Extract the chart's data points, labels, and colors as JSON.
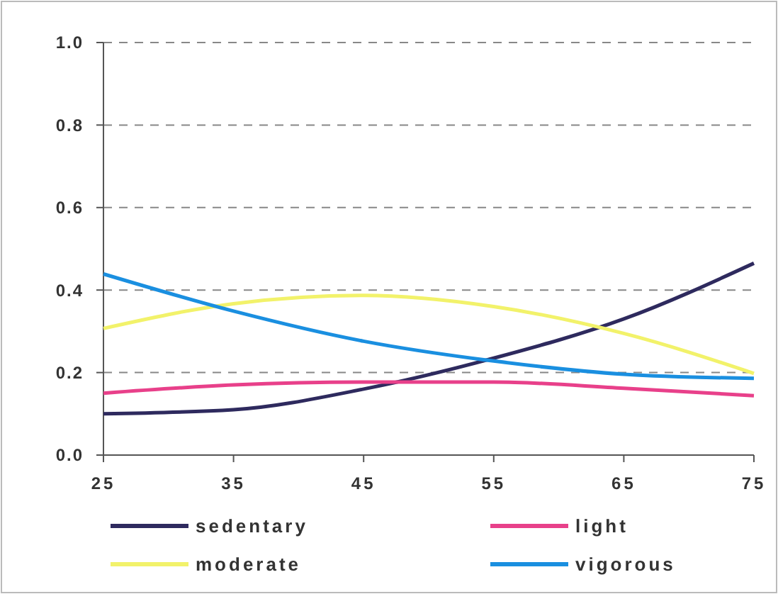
{
  "chart_data": {
    "type": "line",
    "x": [
      25,
      35,
      45,
      55,
      65,
      75
    ],
    "xlim": [
      25,
      75
    ],
    "xticks": [
      25,
      35,
      45,
      55,
      65,
      75
    ],
    "ylim": [
      0,
      1
    ],
    "yticks": [
      {
        "value": 0,
        "label": "0.0"
      },
      {
        "value": 0.2,
        "label": "0.2"
      },
      {
        "value": 0.4,
        "label": "0.4"
      },
      {
        "value": 0.6,
        "label": "0.6"
      },
      {
        "value": 0.8,
        "label": "0.8"
      },
      {
        "value": 1,
        "label": "1.0"
      }
    ],
    "grid": "y",
    "legend": "bottom",
    "marker": "none",
    "line_style": "solid",
    "series": [
      {
        "name": "sedentary",
        "color": "#2e2a5e",
        "values": [
          0.1,
          0.11,
          0.16,
          0.235,
          0.33,
          0.465
        ]
      },
      {
        "name": "light",
        "color": "#e8408a",
        "values": [
          0.15,
          0.17,
          0.177,
          0.177,
          0.162,
          0.144
        ]
      },
      {
        "name": "moderate",
        "color": "#f2f26a",
        "values": [
          0.307,
          0.367,
          0.387,
          0.36,
          0.295,
          0.198
        ]
      },
      {
        "name": "vigorous",
        "color": "#1a8fe0",
        "values": [
          0.439,
          0.349,
          0.276,
          0.228,
          0.196,
          0.186
        ]
      }
    ]
  }
}
